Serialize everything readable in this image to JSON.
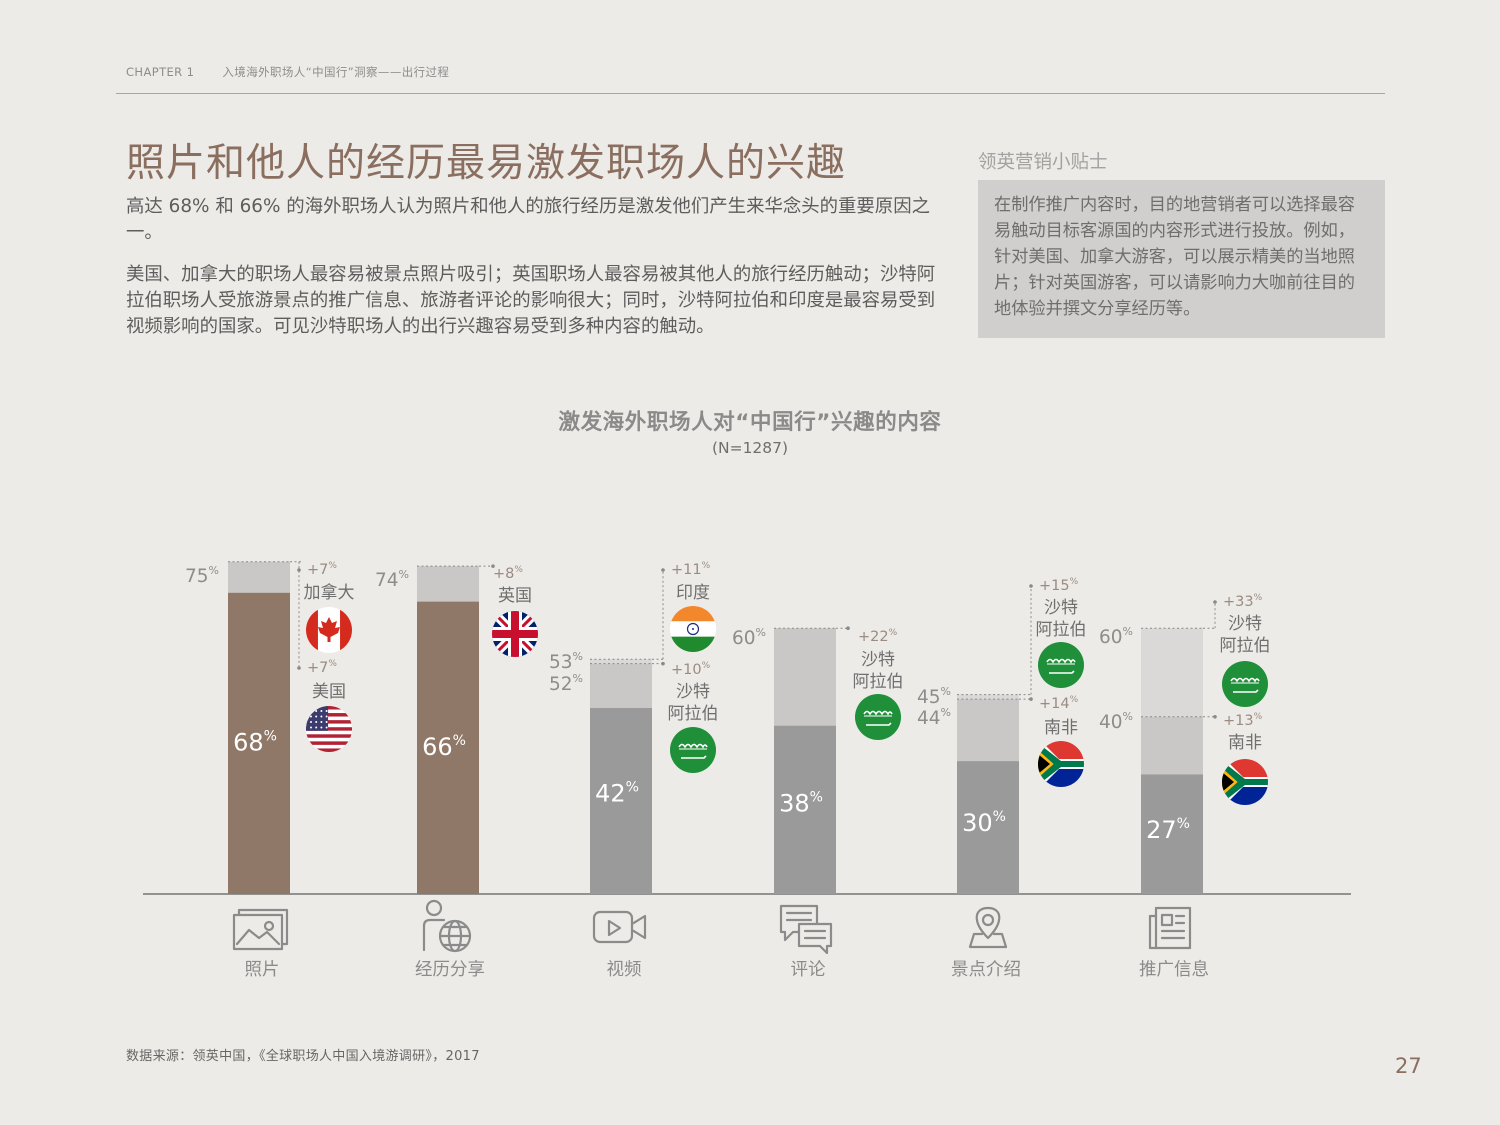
{
  "header": {
    "chapter": "CHAPTER 1",
    "section": "入境海外职场人“中国行”洞察——出行过程"
  },
  "title": "照片和他人的经历最易激发职场人的兴趣",
  "intro": [
    "高达 68% 和 66% 的海外职场人认为照片和他人的旅行经历是激发他们产生来华念头的重要原因之一。",
    "美国、加拿大的职场人最容易被景点照片吸引；英国职场人最容易被其他人的旅行经历触动；沙特阿拉伯职场人受旅游景点的推广信息、旅游者评论的影响很大；同时，沙特阿拉伯和印度是最容易受到视频影响的国家。可见沙特职场人的出行兴趣容易受到多种内容的触动。"
  ],
  "tip": {
    "title": "领英营销小贴士",
    "text": "在制作推广内容时，目的地营销者可以选择最容易触动目标客源国的内容形式进行投放。例如，针对美国、加拿大游客，可以展示精美的当地照片；针对英国游客，可以请影响力大咖前往目的地体验并撰文分享经历等。"
  },
  "chart_data": {
    "type": "bar",
    "title": "激发海外职场人对“中国行”兴趣的内容",
    "subtitle": "(N=1287)",
    "categories": [
      "照片",
      "经历分享",
      "视频",
      "评论",
      "景点介绍",
      "推广信息"
    ],
    "icons": [
      "photo-icon",
      "person-globe-icon",
      "video-icon",
      "comment-icon",
      "map-pin-icon",
      "newspaper-icon"
    ],
    "values": [
      68,
      66,
      42,
      38,
      30,
      27
    ],
    "unit": "%",
    "highlight_values": [
      [
        {
          "value": 75,
          "country": "加拿大",
          "diff": "+7",
          "flag": "canada"
        },
        {
          "value": 75,
          "country": "美国",
          "diff": "+7",
          "flag": "usa"
        }
      ],
      [
        {
          "value": 74,
          "country": "英国",
          "diff": "+8",
          "flag": "uk"
        }
      ],
      [
        {
          "value": 53,
          "country": "印度",
          "diff": "+11",
          "flag": "india"
        },
        {
          "value": 52,
          "country": "沙特阿拉伯",
          "diff": "+10",
          "flag": "saudi"
        }
      ],
      [
        {
          "value": 60,
          "country": "沙特阿拉伯",
          "diff": "+22",
          "flag": "saudi"
        }
      ],
      [
        {
          "value": 45,
          "country": "沙特阿拉伯",
          "diff": "+15",
          "flag": "saudi"
        },
        {
          "value": 44,
          "country": "南非",
          "diff": "+14",
          "flag": "south-africa"
        }
      ],
      [
        {
          "value": 60,
          "country": "沙特阿拉伯",
          "diff": "+33",
          "flag": "saudi"
        },
        {
          "value": 40,
          "country": "南非",
          "diff": "+13",
          "flag": "south-africa"
        }
      ]
    ],
    "colors": {
      "base_highlight": "#8f7868",
      "base": "#9a9a9a",
      "increment": "#c9c8c6",
      "increment_light": "#dad9d7",
      "label": "#8d8d8d",
      "diff_label": "#9b8b80"
    }
  },
  "footnote": "数据来源：领英中国，《全球职场人中国入境游调研》，2017",
  "page_number": "27"
}
